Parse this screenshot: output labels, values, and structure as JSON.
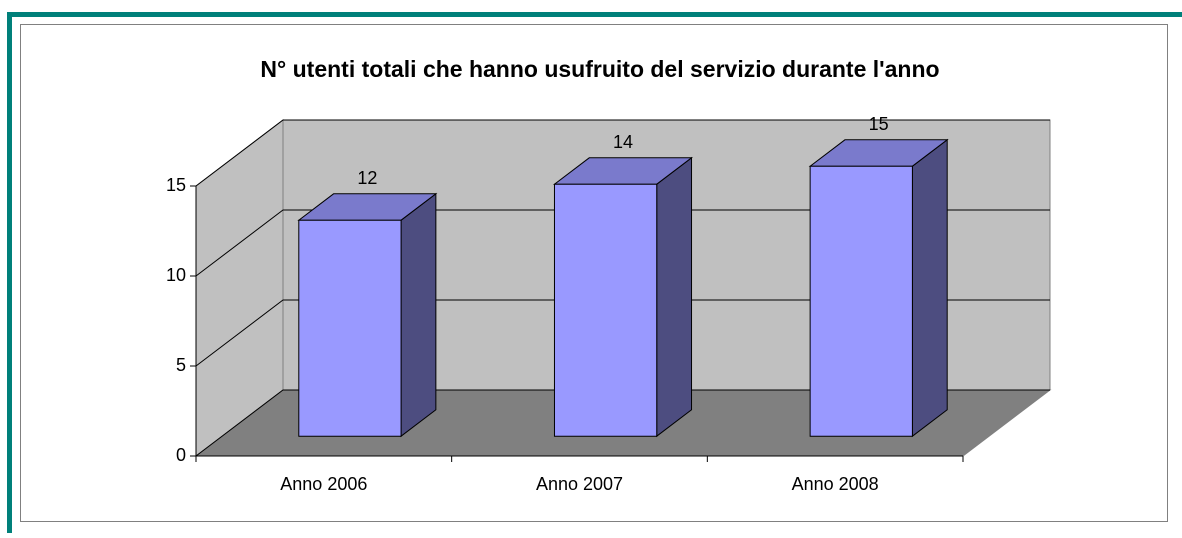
{
  "chart_data": {
    "type": "bar3d",
    "title": "N° utenti totali che hanno usufruito del servizio durante l'anno",
    "categories": [
      "Anno 2006",
      "Anno 2007",
      "Anno 2008"
    ],
    "values": [
      12,
      14,
      15
    ],
    "color": "#9999ff",
    "ylim": [
      0,
      15
    ],
    "yticks": [
      0,
      5,
      10,
      15
    ],
    "grid": true
  }
}
